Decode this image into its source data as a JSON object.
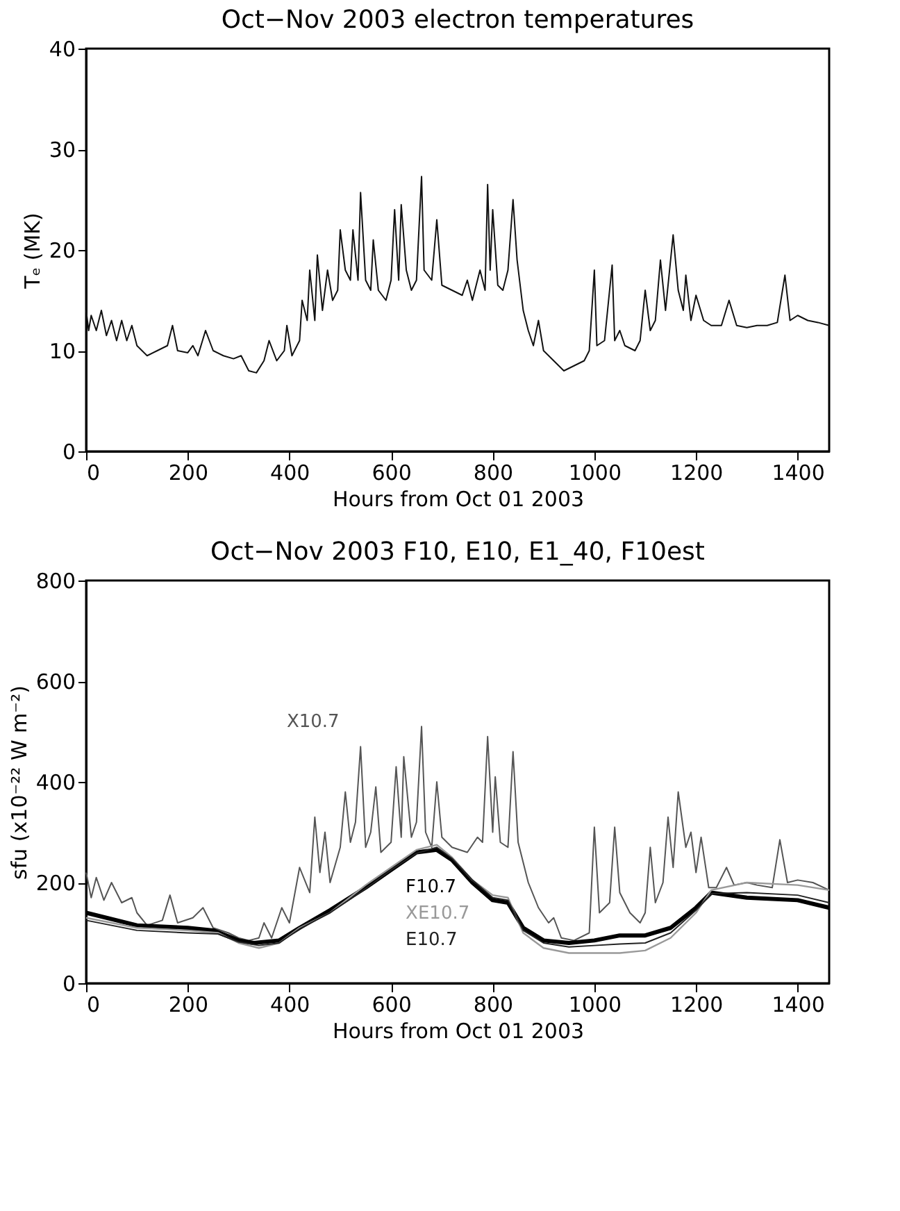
{
  "chart_data": [
    {
      "type": "line",
      "title": "Oct−Nov 2003 electron temperatures",
      "xlabel": "Hours from Oct 01 2003",
      "ylabel": "Tₑ (MK)",
      "xlim": [
        0,
        1462
      ],
      "ylim": [
        0,
        40
      ],
      "xticks": [
        0,
        200,
        400,
        600,
        800,
        1000,
        1200,
        1400
      ],
      "yticks": [
        0,
        10,
        20,
        30,
        40
      ],
      "series": [
        {
          "color": "#111111",
          "x": [
            0,
            5,
            10,
            20,
            30,
            40,
            50,
            60,
            70,
            80,
            90,
            100,
            110,
            120,
            140,
            160,
            170,
            180,
            200,
            210,
            220,
            235,
            250,
            270,
            290,
            305,
            320,
            335,
            350,
            360,
            375,
            390,
            395,
            405,
            420,
            425,
            435,
            440,
            450,
            455,
            465,
            475,
            485,
            495,
            500,
            510,
            520,
            525,
            535,
            540,
            550,
            560,
            565,
            575,
            590,
            600,
            607,
            615,
            620,
            630,
            640,
            650,
            660,
            665,
            680,
            690,
            700,
            720,
            740,
            750,
            760,
            775,
            785,
            790,
            795,
            800,
            810,
            820,
            830,
            840,
            848,
            860,
            870,
            880,
            890,
            900,
            920,
            940,
            960,
            980,
            990,
            1000,
            1005,
            1020,
            1035,
            1040,
            1050,
            1060,
            1080,
            1090,
            1100,
            1110,
            1120,
            1130,
            1140,
            1155,
            1165,
            1175,
            1180,
            1190,
            1200,
            1215,
            1230,
            1250,
            1265,
            1280,
            1300,
            1320,
            1340,
            1360,
            1375,
            1385,
            1400,
            1420,
            1440,
            1462
          ],
          "values": [
            14,
            12,
            13.5,
            12,
            14,
            11.5,
            13,
            11,
            13,
            11,
            12.5,
            10.5,
            10,
            9.5,
            10,
            10.5,
            12.5,
            10,
            9.8,
            10.5,
            9.5,
            12,
            10,
            9.5,
            9.2,
            9.5,
            8,
            7.8,
            9,
            11,
            9,
            10,
            12.5,
            9.5,
            11,
            15,
            13,
            18,
            13,
            19.5,
            14,
            18,
            15,
            16,
            22,
            18,
            17,
            22,
            17,
            25.7,
            17,
            16,
            21,
            16,
            15,
            17,
            24,
            17,
            24.5,
            18,
            16,
            17,
            27.3,
            18,
            17,
            23,
            16.5,
            16,
            15.5,
            17,
            15,
            18,
            16,
            26.5,
            18,
            24,
            16.5,
            16,
            18,
            25,
            19,
            14,
            12,
            10.5,
            13,
            10,
            9,
            8,
            8.5,
            9,
            10,
            18,
            10.5,
            11,
            18.5,
            11,
            12,
            10.5,
            10,
            11,
            16,
            12,
            13,
            19,
            14,
            21.5,
            16,
            14,
            17.5,
            13,
            15.5,
            13,
            12.5,
            12.5,
            15,
            12.5,
            12.3,
            12.5,
            12.5,
            12.8,
            17.5,
            13,
            13.5,
            13,
            12.8,
            12.5
          ]
        }
      ]
    },
    {
      "type": "line",
      "title": "Oct−Nov 2003 F10, E10, E1_40, F10est",
      "xlabel": "Hours from Oct 01 2003",
      "ylabel": "sfu (x10⁻²² W m⁻²)",
      "xlim": [
        0,
        1462
      ],
      "ylim": [
        0,
        800
      ],
      "xticks": [
        0,
        200,
        400,
        600,
        800,
        1000,
        1200,
        1400
      ],
      "yticks": [
        0,
        200,
        400,
        600,
        800
      ],
      "series": [
        {
          "name": "X10.7",
          "color": "#555555",
          "x": [
            0,
            10,
            20,
            35,
            50,
            70,
            90,
            100,
            120,
            150,
            165,
            180,
            210,
            230,
            250,
            280,
            300,
            320,
            340,
            350,
            365,
            385,
            400,
            420,
            440,
            450,
            460,
            470,
            480,
            500,
            510,
            520,
            530,
            540,
            550,
            560,
            570,
            580,
            600,
            610,
            620,
            625,
            640,
            650,
            660,
            668,
            680,
            690,
            700,
            720,
            750,
            770,
            780,
            790,
            800,
            805,
            815,
            830,
            840,
            850,
            870,
            890,
            910,
            920,
            935,
            960,
            990,
            1000,
            1010,
            1030,
            1040,
            1050,
            1070,
            1090,
            1100,
            1110,
            1120,
            1135,
            1145,
            1155,
            1165,
            1180,
            1190,
            1200,
            1210,
            1225,
            1240,
            1260,
            1275,
            1300,
            1320,
            1350,
            1365,
            1380,
            1400,
            1430,
            1462
          ],
          "values": [
            220,
            170,
            210,
            165,
            200,
            160,
            170,
            140,
            115,
            125,
            175,
            120,
            130,
            150,
            110,
            100,
            90,
            85,
            90,
            120,
            90,
            150,
            120,
            230,
            180,
            330,
            220,
            300,
            200,
            270,
            380,
            280,
            320,
            470,
            270,
            300,
            390,
            260,
            280,
            430,
            290,
            450,
            290,
            320,
            510,
            300,
            270,
            400,
            290,
            270,
            260,
            290,
            280,
            490,
            300,
            410,
            280,
            270,
            460,
            280,
            200,
            150,
            120,
            130,
            90,
            85,
            100,
            310,
            140,
            160,
            310,
            180,
            140,
            120,
            140,
            270,
            160,
            200,
            330,
            230,
            380,
            270,
            300,
            220,
            290,
            190,
            190,
            230,
            195,
            200,
            195,
            190,
            285,
            200,
            205,
            200,
            185
          ]
        },
        {
          "name": "F10.7",
          "color": "#000000",
          "x": [
            0,
            100,
            200,
            250,
            300,
            330,
            380,
            420,
            480,
            550,
            600,
            650,
            690,
            720,
            760,
            800,
            830,
            860,
            900,
            950,
            1000,
            1050,
            1100,
            1150,
            1200,
            1230,
            1300,
            1400,
            1462
          ],
          "values": [
            140,
            115,
            110,
            105,
            85,
            80,
            85,
            110,
            145,
            190,
            225,
            260,
            265,
            245,
            200,
            165,
            160,
            110,
            85,
            80,
            85,
            95,
            95,
            110,
            150,
            180,
            170,
            165,
            150
          ]
        },
        {
          "name": "XE10.7",
          "color": "#999999",
          "x": [
            0,
            100,
            200,
            260,
            300,
            340,
            380,
            420,
            480,
            550,
            600,
            650,
            690,
            720,
            760,
            800,
            830,
            860,
            900,
            950,
            1000,
            1050,
            1100,
            1150,
            1200,
            1230,
            1300,
            1400,
            1462
          ],
          "values": [
            130,
            110,
            105,
            100,
            80,
            70,
            80,
            110,
            140,
            195,
            230,
            265,
            275,
            250,
            205,
            175,
            170,
            100,
            70,
            60,
            60,
            60,
            65,
            90,
            140,
            185,
            200,
            195,
            185
          ]
        },
        {
          "name": "E10.7",
          "color": "#222222",
          "x": [
            0,
            100,
            200,
            260,
            300,
            340,
            380,
            420,
            480,
            550,
            600,
            650,
            690,
            720,
            760,
            800,
            830,
            860,
            900,
            950,
            1000,
            1050,
            1100,
            1150,
            1200,
            1230,
            1300,
            1400,
            1462
          ],
          "values": [
            125,
            105,
            100,
            98,
            82,
            75,
            80,
            108,
            140,
            188,
            225,
            258,
            270,
            248,
            205,
            170,
            165,
            105,
            80,
            72,
            75,
            78,
            80,
            100,
            145,
            178,
            180,
            175,
            160
          ]
        }
      ]
    }
  ]
}
